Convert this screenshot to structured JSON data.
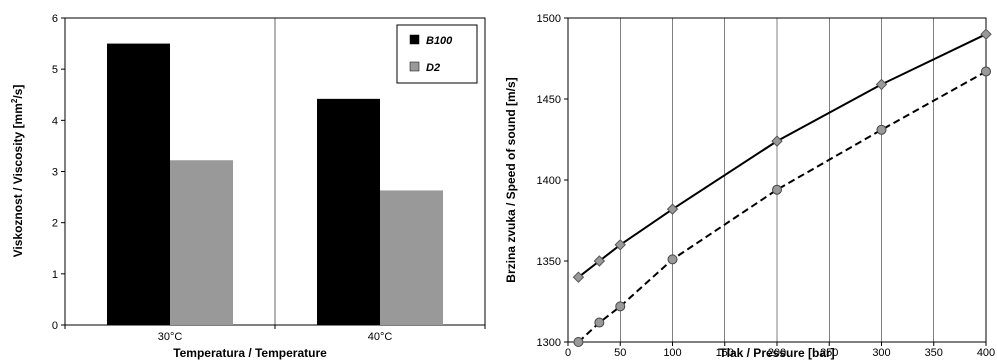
{
  "chart_data": [
    {
      "type": "bar",
      "categories": [
        "30°C",
        "40°C"
      ],
      "xlabel": "Temperatura / Temperature",
      "ylabel_main": "Viskoznost / Viscosity [mm",
      "ylabel_sup": "2",
      "ylabel_end": "/s]",
      "ylim": [
        0,
        6
      ],
      "yticks": [
        0,
        1,
        2,
        3,
        4,
        5,
        6
      ],
      "grid": "vertical-lines",
      "legend_position": "top-right",
      "series": [
        {
          "name": "B100",
          "color": "#000000",
          "values": [
            5.5,
            4.42
          ]
        },
        {
          "name": "D2",
          "color": "#999999",
          "values": [
            3.22,
            2.63
          ]
        }
      ]
    },
    {
      "type": "line",
      "xlabel": "Tlak / Pressure [bar]",
      "ylabel": "Brzina zvuka / Speed of sound [m/s]",
      "xlim": [
        0,
        400
      ],
      "ylim": [
        1300,
        1500
      ],
      "xticks": [
        0,
        50,
        100,
        150,
        200,
        250,
        300,
        350,
        400
      ],
      "yticks": [
        1300,
        1350,
        1400,
        1450,
        1500
      ],
      "grid": "vertical-lines",
      "series": [
        {
          "style": "solid",
          "marker": "diamond",
          "color": "#000000",
          "x": [
            10,
            30,
            50,
            100,
            200,
            300,
            400
          ],
          "y": [
            1340,
            1350,
            1360,
            1382,
            1424,
            1459,
            1490
          ]
        },
        {
          "style": "dashed",
          "marker": "circle",
          "color": "#000000",
          "x": [
            10,
            30,
            50,
            100,
            200,
            300,
            400
          ],
          "y": [
            1300,
            1312,
            1322,
            1351,
            1394,
            1431,
            1467
          ]
        }
      ]
    }
  ]
}
